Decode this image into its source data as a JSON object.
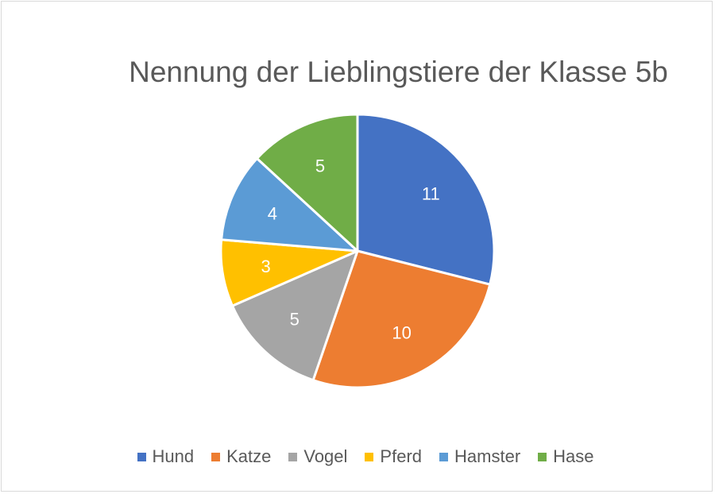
{
  "chart_data": {
    "type": "pie",
    "title": "Nennung der Lieblingstiere der Klasse 5b",
    "categories": [
      "Hund",
      "Katze",
      "Vogel",
      "Pferd",
      "Hamster",
      "Hase"
    ],
    "values": [
      11,
      10,
      5,
      3,
      4,
      5
    ],
    "colors": [
      "#4472C4",
      "#ED7D31",
      "#A5A5A5",
      "#FFC000",
      "#5B9BD5",
      "#70AD47"
    ],
    "data_labels": [
      "11",
      "10",
      "5",
      "3",
      "4",
      "5"
    ],
    "legend_position": "bottom"
  }
}
